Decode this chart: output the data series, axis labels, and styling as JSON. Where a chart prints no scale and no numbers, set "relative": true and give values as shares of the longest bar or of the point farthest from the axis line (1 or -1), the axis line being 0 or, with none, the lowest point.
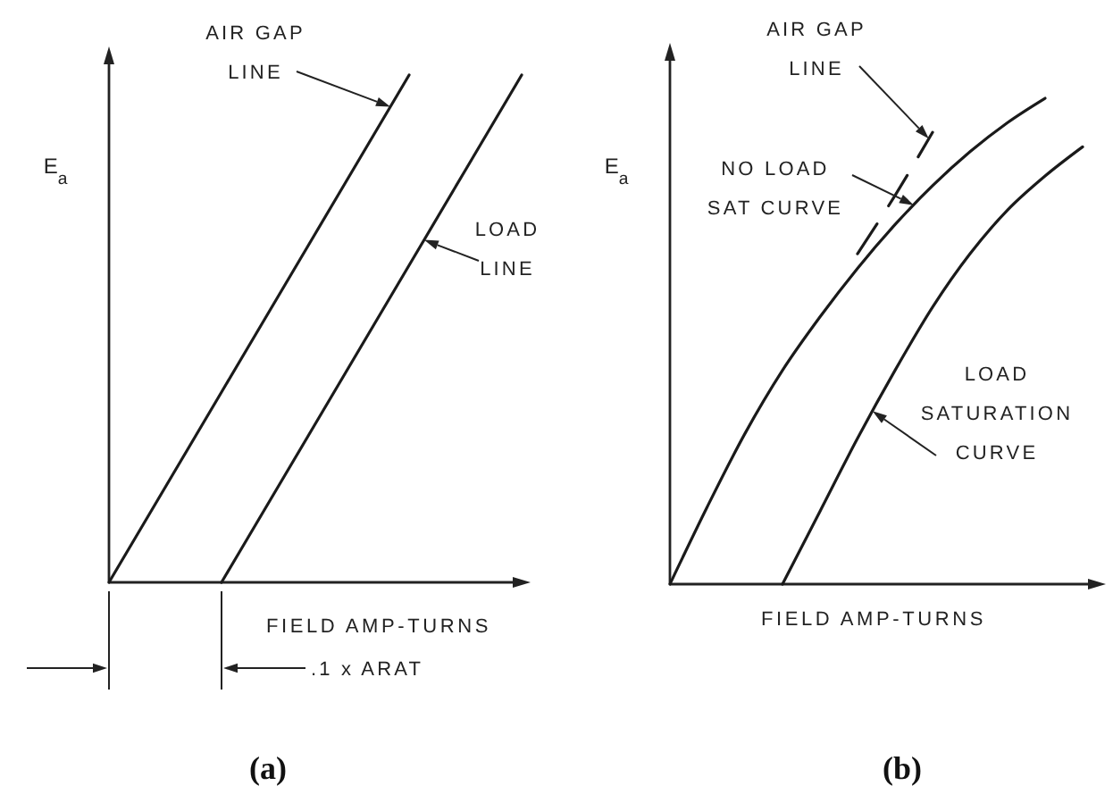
{
  "chart_data": [
    {
      "type": "line",
      "title": "(a)",
      "xlabel": "FIELD AMP-TURNS",
      "ylabel": "E$_{a}$",
      "relative": true,
      "categories": [
        null,
        null,
        null,
        null,
        null,
        null,
        null,
        null,
        null,
        null,
        null,
        null
      ],
      "series": [
        {
          "name": "AIR GAP LINE",
          "color": "#1a1a1a",
          "values": [
            0,
            0.125,
            0.25,
            0.375,
            0.5,
            0.625,
            0.75,
            0.875,
            1,
            null,
            null,
            null
          ]
        },
        {
          "name": "LOAD LINE",
          "color": "#1a1a1a",
          "values": [
            null,
            null,
            null,
            0,
            0.125,
            0.25,
            0.375,
            0.5,
            0.625,
            0.75,
            0.875,
            1
          ]
        }
      ],
      "annotations": [
        ".1 x ARAT"
      ]
    },
    {
      "type": "line",
      "title": "(b)",
      "xlabel": "FIELD AMP-TURNS",
      "ylabel": "E$_{a}$",
      "relative": true,
      "categories": [
        null,
        null,
        null,
        null,
        null,
        null,
        null,
        null,
        null,
        null,
        null,
        null
      ],
      "series": [
        {
          "name": "AIR GAP LINE",
          "color": "#1a1a1a",
          "line_style": "dashed",
          "values": [
            null,
            null,
            null,
            null,
            null,
            0.68,
            0.8,
            0.93,
            null,
            null,
            null,
            null
          ]
        },
        {
          "name": "NO LOAD SAT CURVE",
          "color": "#1a1a1a",
          "values": [
            0,
            0.16,
            0.31,
            0.44,
            0.55,
            0.65,
            0.74,
            0.82,
            0.89,
            0.95,
            1,
            null
          ]
        },
        {
          "name": "LOAD SATURATION CURVE",
          "color": "#1a1a1a",
          "values": [
            null,
            null,
            null,
            0,
            0.15,
            0.3,
            0.44,
            0.57,
            0.68,
            0.77,
            0.84,
            0.9
          ]
        }
      ]
    }
  ]
}
